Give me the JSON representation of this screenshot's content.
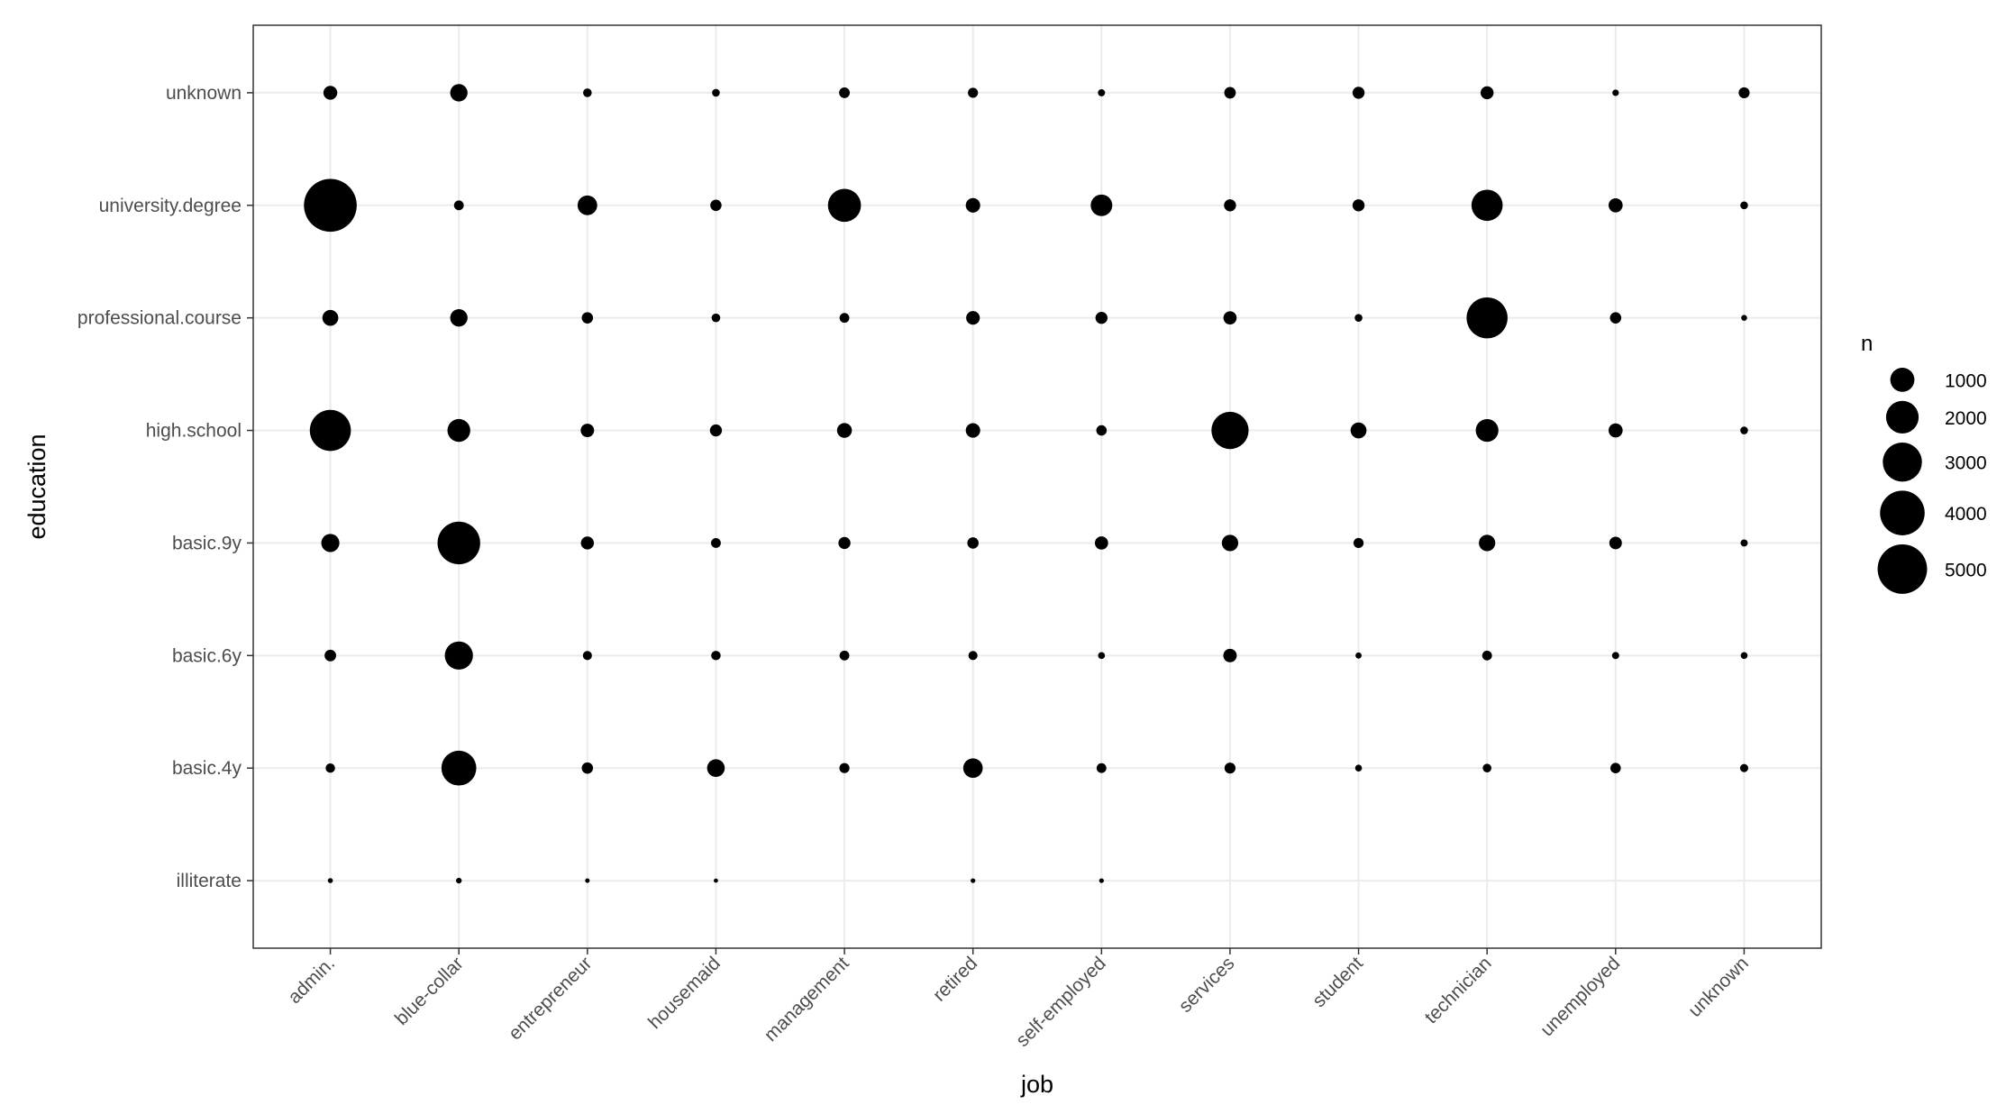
{
  "chart_data": {
    "type": "scatter",
    "xlabel": "job",
    "ylabel": "education",
    "x_categories": [
      "admin.",
      "blue-collar",
      "entrepreneur",
      "housemaid",
      "management",
      "retired",
      "self-employed",
      "services",
      "student",
      "technician",
      "unemployed",
      "unknown"
    ],
    "y_categories": [
      "illiterate",
      "basic.4y",
      "basic.6y",
      "basic.9y",
      "high.school",
      "professional.course",
      "university.degree",
      "unknown"
    ],
    "size_variable": "n",
    "points": [
      {
        "x": "admin.",
        "y": "unknown",
        "n": 250
      },
      {
        "x": "admin.",
        "y": "university.degree",
        "n": 5750
      },
      {
        "x": "admin.",
        "y": "professional.course",
        "n": 360
      },
      {
        "x": "admin.",
        "y": "high.school",
        "n": 3330
      },
      {
        "x": "admin.",
        "y": "basic.9y",
        "n": 500
      },
      {
        "x": "admin.",
        "y": "basic.6y",
        "n": 150
      },
      {
        "x": "admin.",
        "y": "basic.4y",
        "n": 80
      },
      {
        "x": "admin.",
        "y": "illiterate",
        "n": 5
      },
      {
        "x": "blue-collar",
        "y": "unknown",
        "n": 450
      },
      {
        "x": "blue-collar",
        "y": "university.degree",
        "n": 90
      },
      {
        "x": "blue-collar",
        "y": "professional.course",
        "n": 450
      },
      {
        "x": "blue-collar",
        "y": "high.school",
        "n": 880
      },
      {
        "x": "blue-collar",
        "y": "basic.9y",
        "n": 3620
      },
      {
        "x": "blue-collar",
        "y": "basic.6y",
        "n": 1430
      },
      {
        "x": "blue-collar",
        "y": "basic.4y",
        "n": 2320
      },
      {
        "x": "blue-collar",
        "y": "illiterate",
        "n": 10
      },
      {
        "x": "entrepreneur",
        "y": "unknown",
        "n": 60
      },
      {
        "x": "entrepreneur",
        "y": "university.degree",
        "n": 610
      },
      {
        "x": "entrepreneur",
        "y": "professional.course",
        "n": 140
      },
      {
        "x": "entrepreneur",
        "y": "high.school",
        "n": 230
      },
      {
        "x": "entrepreneur",
        "y": "basic.9y",
        "n": 210
      },
      {
        "x": "entrepreneur",
        "y": "basic.6y",
        "n": 70
      },
      {
        "x": "entrepreneur",
        "y": "basic.4y",
        "n": 140
      },
      {
        "x": "entrepreneur",
        "y": "illiterate",
        "n": 2
      },
      {
        "x": "housemaid",
        "y": "unknown",
        "n": 40
      },
      {
        "x": "housemaid",
        "y": "university.degree",
        "n": 140
      },
      {
        "x": "housemaid",
        "y": "professional.course",
        "n": 60
      },
      {
        "x": "housemaid",
        "y": "high.school",
        "n": 170
      },
      {
        "x": "housemaid",
        "y": "basic.9y",
        "n": 90
      },
      {
        "x": "housemaid",
        "y": "basic.6y",
        "n": 80
      },
      {
        "x": "housemaid",
        "y": "basic.4y",
        "n": 470
      },
      {
        "x": "housemaid",
        "y": "illiterate",
        "n": 1
      },
      {
        "x": "management",
        "y": "unknown",
        "n": 120
      },
      {
        "x": "management",
        "y": "university.degree",
        "n": 2060
      },
      {
        "x": "management",
        "y": "professional.course",
        "n": 90
      },
      {
        "x": "management",
        "y": "high.school",
        "n": 300
      },
      {
        "x": "management",
        "y": "basic.9y",
        "n": 170
      },
      {
        "x": "management",
        "y": "basic.6y",
        "n": 90
      },
      {
        "x": "management",
        "y": "basic.4y",
        "n": 100
      },
      {
        "x": "retired",
        "y": "unknown",
        "n": 100
      },
      {
        "x": "retired",
        "y": "university.degree",
        "n": 280
      },
      {
        "x": "retired",
        "y": "professional.course",
        "n": 240
      },
      {
        "x": "retired",
        "y": "high.school",
        "n": 280
      },
      {
        "x": "retired",
        "y": "basic.9y",
        "n": 140
      },
      {
        "x": "retired",
        "y": "basic.6y",
        "n": 70
      },
      {
        "x": "retired",
        "y": "basic.4y",
        "n": 600
      },
      {
        "x": "retired",
        "y": "illiterate",
        "n": 3
      },
      {
        "x": "self-employed",
        "y": "unknown",
        "n": 30
      },
      {
        "x": "self-employed",
        "y": "university.degree",
        "n": 770
      },
      {
        "x": "self-employed",
        "y": "professional.course",
        "n": 170
      },
      {
        "x": "self-employed",
        "y": "high.school",
        "n": 110
      },
      {
        "x": "self-employed",
        "y": "basic.9y",
        "n": 220
      },
      {
        "x": "self-employed",
        "y": "basic.6y",
        "n": 25
      },
      {
        "x": "self-employed",
        "y": "basic.4y",
        "n": 90
      },
      {
        "x": "self-employed",
        "y": "illiterate",
        "n": 3
      },
      {
        "x": "services",
        "y": "unknown",
        "n": 150
      },
      {
        "x": "services",
        "y": "university.degree",
        "n": 170
      },
      {
        "x": "services",
        "y": "professional.course",
        "n": 220
      },
      {
        "x": "services",
        "y": "high.school",
        "n": 2680
      },
      {
        "x": "services",
        "y": "basic.9y",
        "n": 390
      },
      {
        "x": "services",
        "y": "basic.6y",
        "n": 230
      },
      {
        "x": "services",
        "y": "basic.4y",
        "n": 130
      },
      {
        "x": "student",
        "y": "unknown",
        "n": 170
      },
      {
        "x": "student",
        "y": "university.degree",
        "n": 170
      },
      {
        "x": "student",
        "y": "professional.course",
        "n": 40
      },
      {
        "x": "student",
        "y": "high.school",
        "n": 360
      },
      {
        "x": "student",
        "y": "basic.9y",
        "n": 100
      },
      {
        "x": "student",
        "y": "basic.6y",
        "n": 15
      },
      {
        "x": "student",
        "y": "basic.4y",
        "n": 25
      },
      {
        "x": "technician",
        "y": "unknown",
        "n": 210
      },
      {
        "x": "technician",
        "y": "university.degree",
        "n": 1810
      },
      {
        "x": "technician",
        "y": "professional.course",
        "n": 3320
      },
      {
        "x": "technician",
        "y": "high.school",
        "n": 870
      },
      {
        "x": "technician",
        "y": "basic.9y",
        "n": 390
      },
      {
        "x": "technician",
        "y": "basic.6y",
        "n": 90
      },
      {
        "x": "technician",
        "y": "basic.4y",
        "n": 60
      },
      {
        "x": "unemployed",
        "y": "unknown",
        "n": 20
      },
      {
        "x": "unemployed",
        "y": "university.degree",
        "n": 260
      },
      {
        "x": "unemployed",
        "y": "professional.course",
        "n": 140
      },
      {
        "x": "unemployed",
        "y": "high.school",
        "n": 260
      },
      {
        "x": "unemployed",
        "y": "basic.9y",
        "n": 190
      },
      {
        "x": "unemployed",
        "y": "basic.6y",
        "n": 30
      },
      {
        "x": "unemployed",
        "y": "basic.4y",
        "n": 110
      },
      {
        "x": "unknown",
        "y": "unknown",
        "n": 130
      },
      {
        "x": "unknown",
        "y": "university.degree",
        "n": 40
      },
      {
        "x": "unknown",
        "y": "professional.course",
        "n": 12
      },
      {
        "x": "unknown",
        "y": "high.school",
        "n": 40
      },
      {
        "x": "unknown",
        "y": "basic.9y",
        "n": 30
      },
      {
        "x": "unknown",
        "y": "basic.6y",
        "n": 25
      },
      {
        "x": "unknown",
        "y": "basic.4y",
        "n": 50
      }
    ],
    "legend": {
      "title": "n",
      "placement": "right",
      "values": [
        1000,
        2000,
        3000,
        4000,
        5000
      ],
      "labels": [
        "1000",
        "2000",
        "3000",
        "4000",
        "5000"
      ]
    },
    "grid": true,
    "point_color": "#000000",
    "panel_border_color": "#333333",
    "grid_color": "#ebebeb"
  }
}
